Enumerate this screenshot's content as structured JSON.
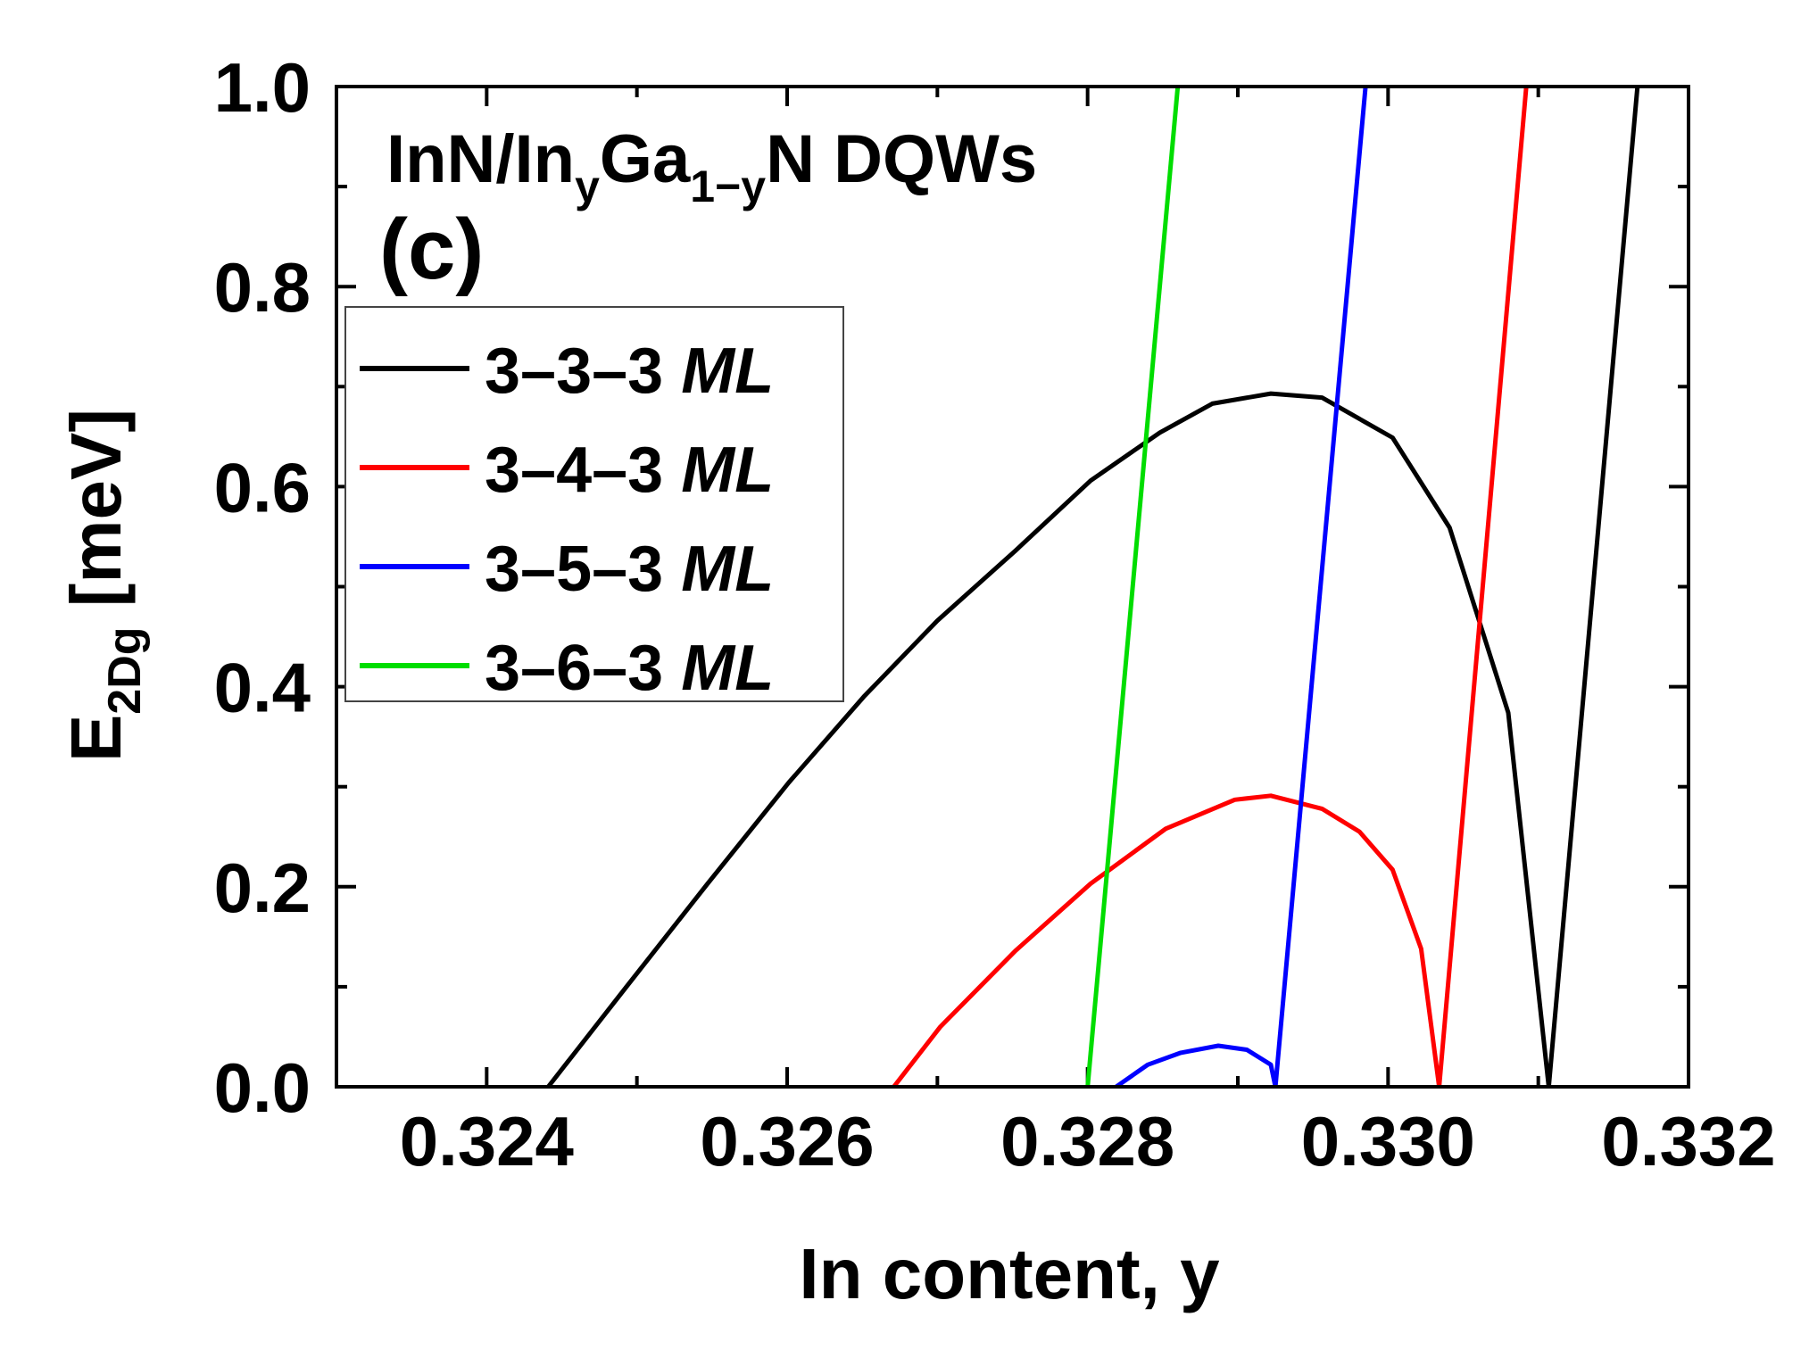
{
  "chart_data": {
    "type": "line",
    "title": {
      "part1": "InN/In",
      "sub1": "y",
      "part2": "Ga",
      "sub2": "1−y",
      "part3": "N DQWs"
    },
    "panel_label": "(c)",
    "xlabel": "In content, y",
    "ylabel": {
      "main": "E",
      "sub": "2Dg",
      "rest": " [meV]"
    },
    "xlim": [
      0.323,
      0.332
    ],
    "ylim": [
      0.0,
      1.0
    ],
    "xticks": [
      "0.324",
      "0.326",
      "0.328",
      "0.330",
      "0.332"
    ],
    "xtick_values": [
      0.324,
      0.326,
      0.328,
      0.33,
      0.332
    ],
    "yticks": [
      "0.0",
      "0.2",
      "0.4",
      "0.6",
      "0.8",
      "1.0"
    ],
    "ytick_values": [
      0,
      0.2,
      0.4,
      0.6,
      0.8,
      1.0
    ],
    "grid": false,
    "legend_placement": "upper-left",
    "series": [
      {
        "name": "3–3–3",
        "unit": "ML",
        "color": "#000000",
        "x": [
          0.32441,
          0.32493,
          0.32547,
          0.32601,
          0.32651,
          0.327,
          0.32752,
          0.32802,
          0.32848,
          0.32883,
          0.32922,
          0.32956,
          0.33003,
          0.33041,
          0.3308,
          0.33107,
          0.33166
        ],
        "y": [
          0,
          0.1,
          0.203,
          0.304,
          0.39,
          0.466,
          0.536,
          0.606,
          0.654,
          0.683,
          0.693,
          0.689,
          0.649,
          0.559,
          0.374,
          0,
          1.0
        ]
      },
      {
        "name": "3–4–3",
        "unit": "ML",
        "color": "#ff0000",
        "x": [
          0.32671,
          0.32702,
          0.32752,
          0.32802,
          0.32852,
          0.32898,
          0.32922,
          0.32956,
          0.32981,
          0.33003,
          0.33022,
          0.33034,
          0.33092
        ],
        "y": [
          0,
          0.06,
          0.136,
          0.203,
          0.258,
          0.287,
          0.291,
          0.278,
          0.255,
          0.217,
          0.138,
          0,
          1.0
        ]
      },
      {
        "name": "3–5–3",
        "unit": "ML",
        "color": "#0000ff",
        "x": [
          0.32819,
          0.3284,
          0.32862,
          0.32887,
          0.32906,
          0.32922,
          0.32925,
          0.32985
        ],
        "y": [
          0,
          0.022,
          0.034,
          0.041,
          0.037,
          0.022,
          0,
          1.0
        ]
      },
      {
        "name": "3–6–3",
        "unit": "ML",
        "color": "#00dd00",
        "x": [
          0.328,
          0.3286
        ],
        "y": [
          0,
          1.0
        ]
      }
    ]
  }
}
